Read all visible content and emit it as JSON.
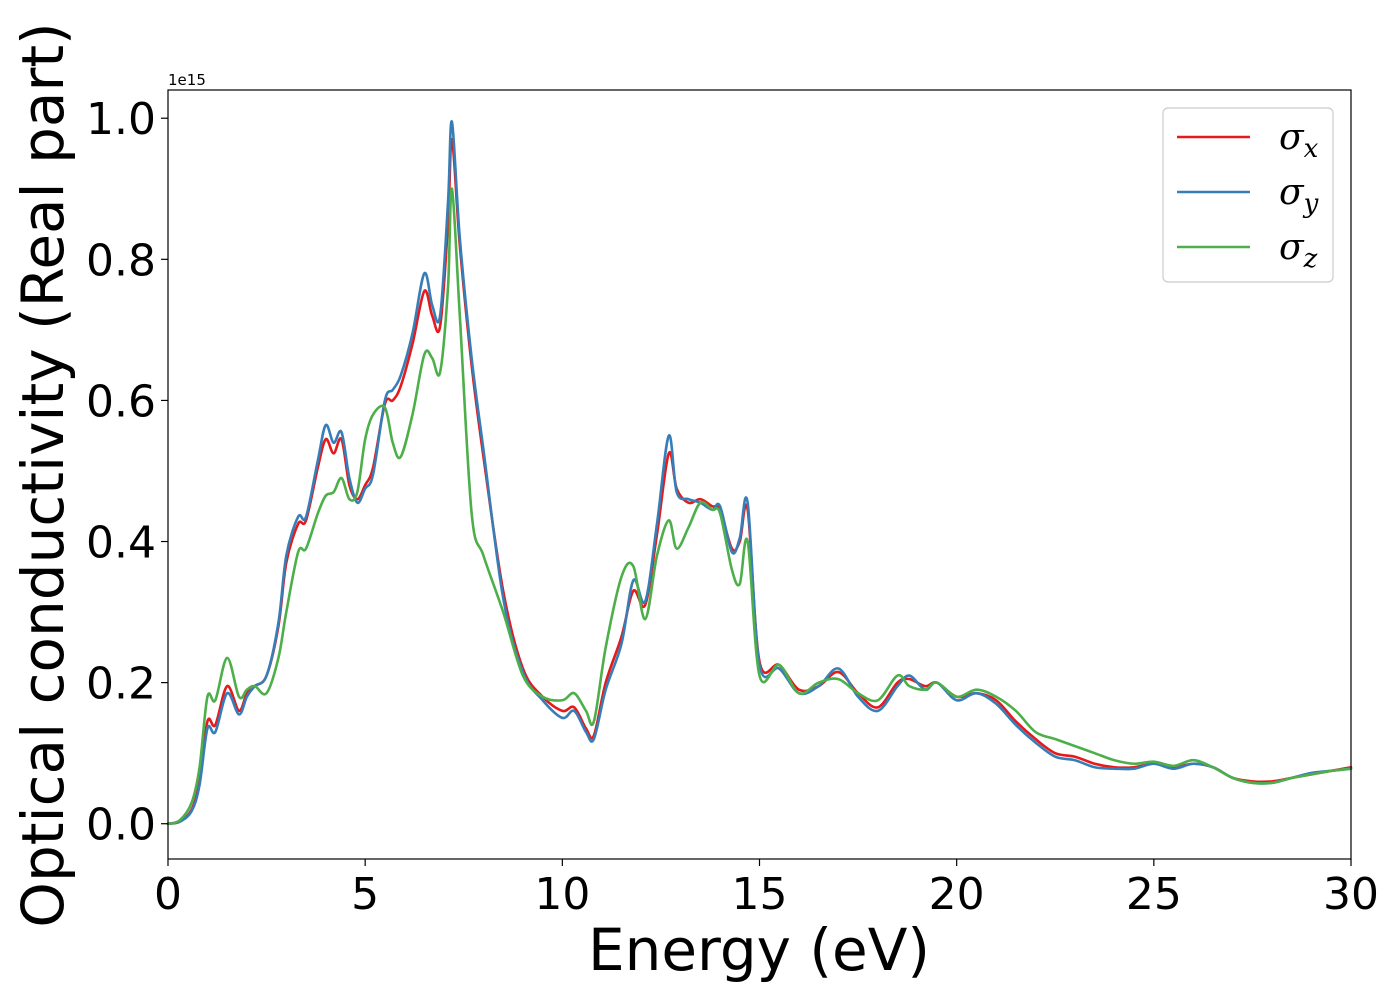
{
  "chart_data": {
    "type": "line",
    "xlabel": "Energy (eV)",
    "ylabel": "Optical conductivity (Real part)",
    "y_offset_label": "1e15",
    "xlim": [
      0,
      30
    ],
    "ylim": [
      -0.05,
      1.04
    ],
    "x_ticks": [
      0,
      5,
      10,
      15,
      20,
      25,
      30
    ],
    "x_tick_labels": [
      "0",
      "5",
      "10",
      "15",
      "20",
      "25",
      "30"
    ],
    "y_ticks": [
      0.0,
      0.2,
      0.4,
      0.6,
      0.8,
      1.0
    ],
    "y_tick_labels": [
      "0.0",
      "0.2",
      "0.4",
      "0.6",
      "0.8",
      "1.0"
    ],
    "grid": false,
    "legend_position": "top-right",
    "x": [
      0,
      0.3,
      0.6,
      0.8,
      1.0,
      1.2,
      1.5,
      1.8,
      2.0,
      2.2,
      2.5,
      2.8,
      3.0,
      3.3,
      3.5,
      3.8,
      4.0,
      4.2,
      4.4,
      4.6,
      4.8,
      5.0,
      5.2,
      5.5,
      5.7,
      5.9,
      6.2,
      6.5,
      6.7,
      6.9,
      7.1,
      7.2,
      7.4,
      7.7,
      8.0,
      8.5,
      9.0,
      9.5,
      10.0,
      10.3,
      10.6,
      10.8,
      11.1,
      11.5,
      11.8,
      12.1,
      12.4,
      12.7,
      12.9,
      13.2,
      13.5,
      13.8,
      14.0,
      14.3,
      14.5,
      14.7,
      15.0,
      15.5,
      16.0,
      16.5,
      17.0,
      17.5,
      18.0,
      18.5,
      18.8,
      19.2,
      19.5,
      20.0,
      20.5,
      21.0,
      21.5,
      22.0,
      22.5,
      23.0,
      23.5,
      24.0,
      24.5,
      25.0,
      25.5,
      26.0,
      26.5,
      27.0,
      27.5,
      28.0,
      28.5,
      29.0,
      29.5,
      30.0
    ],
    "series": [
      {
        "name": "σx",
        "color": "#e41a1c",
        "values": [
          0.0,
          0.003,
          0.02,
          0.06,
          0.145,
          0.14,
          0.195,
          0.16,
          0.185,
          0.195,
          0.21,
          0.28,
          0.37,
          0.425,
          0.43,
          0.505,
          0.545,
          0.525,
          0.545,
          0.48,
          0.46,
          0.48,
          0.505,
          0.595,
          0.6,
          0.62,
          0.68,
          0.755,
          0.72,
          0.705,
          0.85,
          0.97,
          0.82,
          0.65,
          0.52,
          0.33,
          0.22,
          0.18,
          0.16,
          0.165,
          0.135,
          0.125,
          0.2,
          0.265,
          0.33,
          0.31,
          0.41,
          0.525,
          0.475,
          0.455,
          0.46,
          0.45,
          0.445,
          0.39,
          0.4,
          0.445,
          0.23,
          0.225,
          0.19,
          0.195,
          0.215,
          0.185,
          0.165,
          0.2,
          0.205,
          0.195,
          0.2,
          0.18,
          0.185,
          0.175,
          0.145,
          0.12,
          0.1,
          0.095,
          0.085,
          0.08,
          0.08,
          0.085,
          0.08,
          0.085,
          0.08,
          0.065,
          0.06,
          0.06,
          0.065,
          0.07,
          0.075,
          0.08
        ]
      },
      {
        "name": "σy",
        "color": "#377eb8",
        "values": [
          0.0,
          0.003,
          0.018,
          0.055,
          0.135,
          0.13,
          0.185,
          0.155,
          0.18,
          0.195,
          0.21,
          0.285,
          0.38,
          0.435,
          0.435,
          0.515,
          0.565,
          0.54,
          0.555,
          0.49,
          0.455,
          0.475,
          0.495,
          0.6,
          0.615,
          0.635,
          0.695,
          0.78,
          0.735,
          0.72,
          0.88,
          0.995,
          0.83,
          0.66,
          0.53,
          0.32,
          0.215,
          0.175,
          0.15,
          0.16,
          0.13,
          0.12,
          0.19,
          0.255,
          0.345,
          0.315,
          0.425,
          0.55,
          0.47,
          0.46,
          0.455,
          0.445,
          0.45,
          0.385,
          0.405,
          0.455,
          0.225,
          0.22,
          0.185,
          0.195,
          0.22,
          0.18,
          0.16,
          0.195,
          0.21,
          0.19,
          0.2,
          0.175,
          0.185,
          0.17,
          0.14,
          0.115,
          0.095,
          0.09,
          0.08,
          0.078,
          0.078,
          0.085,
          0.078,
          0.085,
          0.08,
          0.065,
          0.058,
          0.058,
          0.065,
          0.072,
          0.075,
          0.078
        ]
      },
      {
        "name": "σz",
        "color": "#4daf4a",
        "values": [
          0.0,
          0.005,
          0.03,
          0.08,
          0.18,
          0.175,
          0.235,
          0.18,
          0.19,
          0.195,
          0.185,
          0.235,
          0.3,
          0.385,
          0.39,
          0.44,
          0.465,
          0.47,
          0.49,
          0.46,
          0.47,
          0.545,
          0.58,
          0.59,
          0.54,
          0.52,
          0.58,
          0.665,
          0.66,
          0.64,
          0.76,
          0.9,
          0.72,
          0.44,
          0.38,
          0.3,
          0.21,
          0.18,
          0.175,
          0.185,
          0.16,
          0.145,
          0.25,
          0.35,
          0.365,
          0.29,
          0.38,
          0.43,
          0.39,
          0.42,
          0.455,
          0.445,
          0.44,
          0.36,
          0.34,
          0.4,
          0.21,
          0.225,
          0.185,
          0.2,
          0.205,
          0.185,
          0.175,
          0.21,
          0.195,
          0.19,
          0.2,
          0.18,
          0.19,
          0.18,
          0.16,
          0.13,
          0.12,
          0.11,
          0.1,
          0.09,
          0.085,
          0.088,
          0.082,
          0.09,
          0.08,
          0.065,
          0.058,
          0.058,
          0.065,
          0.07,
          0.075,
          0.078
        ]
      }
    ],
    "legend": [
      {
        "symbol": "σ",
        "subscript": "x",
        "color": "#e41a1c"
      },
      {
        "symbol": "σ",
        "subscript": "y",
        "color": "#377eb8"
      },
      {
        "symbol": "σ",
        "subscript": "z",
        "color": "#4daf4a"
      }
    ]
  }
}
